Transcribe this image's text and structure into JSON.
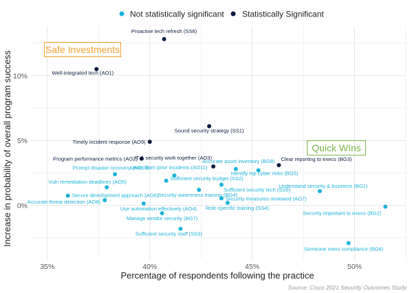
{
  "colors": {
    "not_sig": "#1ab3d9",
    "sig": "#0d1b3e",
    "not_sig_label": "#1ab3d9",
    "sig_label": "#0d1b3e",
    "safe_box": "#f0a030",
    "quick_box": "#7ab648",
    "grid": "#e4e4e4"
  },
  "legend": {
    "not_sig": "Not statistically significant",
    "sig": "Statistically Significant"
  },
  "annotations": {
    "safe": "Safe Investments",
    "quick": "Quick WIns"
  },
  "source": "Source: Cisco 2021 Security Outcomes Study",
  "chart_data": {
    "type": "scatter",
    "xlabel": "Percentage of respondents following the practice",
    "ylabel": "Increase in probability of overall program success",
    "xlim": [
      34.2,
      52.5
    ],
    "ylim": [
      -4.2,
      13.8
    ],
    "x_ticks": [
      35,
      40,
      45,
      50
    ],
    "x_tick_labels": [
      "35%",
      "40%",
      "45%",
      "50%"
    ],
    "y_ticks": [
      0,
      5,
      10
    ],
    "y_tick_labels": [
      "0%",
      "5%",
      "10%"
    ],
    "grid": true,
    "legend_position": "top-center",
    "series": [
      {
        "name": "Statistically Significant",
        "points": [
          {
            "label": "Proactive tech refresh (SS6)",
            "x": 40.7,
            "y": 12.8
          },
          {
            "label": "Well-integrated tech (AO1)",
            "x": 37.4,
            "y": 10.5
          },
          {
            "label": "Sound security strategy (SS1)",
            "x": 42.9,
            "y": 6.1
          },
          {
            "label": "Timely incident response (AO9)",
            "x": 40.0,
            "y": 4.9
          },
          {
            "label": "Program performance metrics (AO2)",
            "x": 39.6,
            "y": 3.6
          },
          {
            "label": "IT & security work together (AO3)",
            "x": 43.1,
            "y": 3.0
          },
          {
            "label": "Clear reporting to execs (BG3)",
            "x": 46.3,
            "y": 3.1
          }
        ]
      },
      {
        "name": "Not statistically significant",
        "points": [
          {
            "label": "Accurate asset inventory (BG8)",
            "x": 44.2,
            "y": 2.8
          },
          {
            "label": "Prompt disaster recovery (AO10)",
            "x": 38.3,
            "y": 2.4
          },
          {
            "label": "Learn from prior incidents (AO11)",
            "x": 41.2,
            "y": 2.3
          },
          {
            "label": "Identify top cyber risks (BG5)",
            "x": 45.3,
            "y": 2.7
          },
          {
            "label": "Sufficient security budget (SS2)",
            "x": 40.8,
            "y": 1.9
          },
          {
            "label": "Vuln remediation deadlines (AO5)",
            "x": 37.9,
            "y": 1.4
          },
          {
            "label": "Sufficient security tech (SS5)",
            "x": 43.5,
            "y": 1.6
          },
          {
            "label": "Security awareness training (BG4)",
            "x": 42.4,
            "y": 1.2
          },
          {
            "label": "Understand security & business (BG1)",
            "x": 48.3,
            "y": 1.1
          },
          {
            "label": "Secure development approach (AO6)",
            "x": 36.0,
            "y": 0.75
          },
          {
            "label": "Security measures reviewed (AO7)",
            "x": 43.5,
            "y": 0.55
          },
          {
            "label": "Accurate threat detection (AO8)",
            "x": 37.8,
            "y": 0.4
          },
          {
            "label": "Use automation effectively (AO4)",
            "x": 39.7,
            "y": 0.15
          },
          {
            "label": "Role-specific training (SS4)",
            "x": 43.8,
            "y": 0.2
          },
          {
            "label": "Security important to execs (BG2)",
            "x": 51.5,
            "y": -0.1
          },
          {
            "label": "Manage vendor security (BG7)",
            "x": 40.6,
            "y": -0.6
          },
          {
            "label": "Sufficient security staff (SS3)",
            "x": 41.5,
            "y": -1.8
          },
          {
            "label": "Someone owns compliance (BG6)",
            "x": 49.7,
            "y": -2.9
          }
        ]
      }
    ]
  }
}
